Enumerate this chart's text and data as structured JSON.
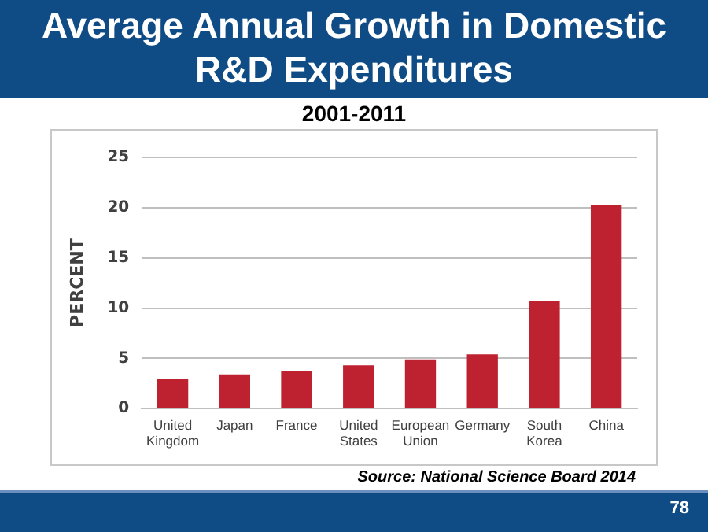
{
  "chart_data": {
    "type": "bar",
    "title": "Average Annual Growth in Domestic R&D Expenditures",
    "subtitle": "2001-2011",
    "ylabel": "PERCENT",
    "categories": [
      "United Kingdom",
      "Japan",
      "France",
      "United States",
      "European Union",
      "Germany",
      "South Korea",
      "China"
    ],
    "values": [
      3.0,
      3.4,
      3.7,
      4.3,
      4.9,
      5.4,
      10.7,
      20.3
    ],
    "color": "#be2231",
    "ylim": [
      0,
      25
    ],
    "yticks": [
      0,
      5,
      10,
      15,
      20,
      25
    ],
    "grid": "y",
    "legend": false,
    "annotations": [
      "Source: National Science Board 2014",
      "78"
    ]
  }
}
